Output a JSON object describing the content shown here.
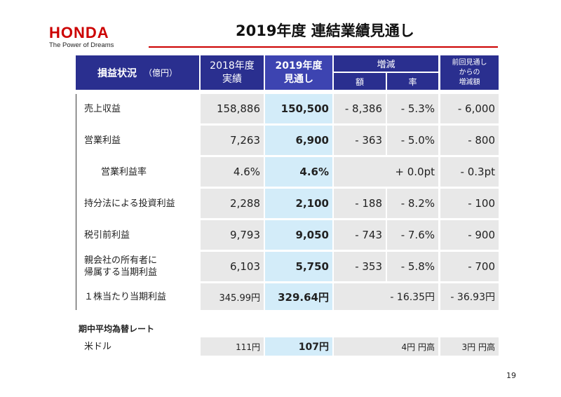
{
  "brand": {
    "name": "HONDA",
    "tagline": "The Power of Dreams",
    "color": "#cc0000"
  },
  "title": "2019年度 連結業績見通し",
  "header": {
    "item_label": "損益状況",
    "unit": "（億円）",
    "col_2018_line1": "2018年度",
    "col_2018_line2": "実績",
    "col_2019_line1": "2019年度",
    "col_2019_line2": "見通し",
    "change_group": "増減",
    "change_amount": "額",
    "change_rate": "率",
    "prev_line1": "前回見通し",
    "prev_line2": "からの",
    "prev_line3": "増減額"
  },
  "rows": [
    {
      "label": "売上収益",
      "fy2018": "158,886",
      "fy2019": "150,500",
      "change_amount": "- 8,386",
      "change_rate": "- 5.3%",
      "vs_prev": "- 6,000"
    },
    {
      "label": "営業利益",
      "fy2018": "7,263",
      "fy2019": "6,900",
      "change_amount": "- 363",
      "change_rate": "- 5.0%",
      "vs_prev": "- 800"
    },
    {
      "label": "営業利益率",
      "fy2018": "4.6%",
      "fy2019": "4.6%",
      "change_combined": "+ 0.0pt",
      "vs_prev": "- 0.3pt"
    },
    {
      "label": "持分法による投資利益",
      "fy2018": "2,288",
      "fy2019": "2,100",
      "change_amount": "- 188",
      "change_rate": "- 8.2%",
      "vs_prev": "- 100"
    },
    {
      "label": "税引前利益",
      "fy2018": "9,793",
      "fy2019": "9,050",
      "change_amount": "- 743",
      "change_rate": "- 7.6%",
      "vs_prev": "- 900"
    },
    {
      "label_line1": "親会社の所有者に",
      "label_line2": "帰属する当期利益",
      "fy2018": "6,103",
      "fy2019": "5,750",
      "change_amount": "- 353",
      "change_rate": "- 5.8%",
      "vs_prev": "- 700"
    },
    {
      "label": "１株当たり当期利益",
      "fy2018": "345.99円",
      "fy2019": "329.64円",
      "change_combined": "- 16.35円",
      "vs_prev": "- 36.93円"
    }
  ],
  "fx": {
    "title": "期中平均為替レート",
    "label": "米ドル",
    "fy2018": "111円",
    "fy2019": "107円",
    "change": "4円 円高",
    "vs_prev": "3円 円高"
  },
  "page_number": "19",
  "colors": {
    "header_bg": "#2a2f8f",
    "header_2019_bg": "#3d44b1",
    "cell_gray": "#e8e8e8",
    "cell_blue": "#d3ecf9",
    "title_rule": "#cc0000"
  }
}
